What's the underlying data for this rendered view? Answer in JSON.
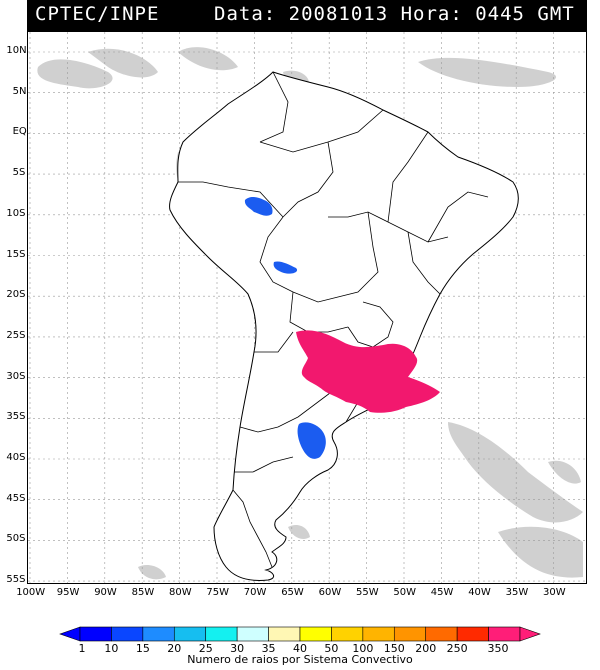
{
  "header": {
    "agency": "CPTEC/INPE",
    "timestamp": "Data: 20081013 Hora: 0445 GMT"
  },
  "map": {
    "lat_labels": [
      "10N",
      "5N",
      "EQ",
      "5S",
      "10S",
      "15S",
      "20S",
      "25S",
      "30S",
      "35S",
      "40S",
      "45S",
      "50S",
      "55S"
    ],
    "lon_labels": [
      "100W",
      "95W",
      "90W",
      "85W",
      "80W",
      "75W",
      "70W",
      "65W",
      "60W",
      "55W",
      "50W",
      "45W",
      "40W",
      "35W",
      "30W"
    ],
    "features": [
      {
        "name": "cluster-peru-brazil",
        "class": "10-15",
        "color": "#1b5cf0"
      },
      {
        "name": "cluster-bolivia",
        "class": "10-15",
        "color": "#1b5cf0"
      },
      {
        "name": "cluster-argentina-south",
        "class": "10-15",
        "color": "#1b5cf0"
      },
      {
        "name": "cluster-uruguay-rs",
        "class": "350",
        "color": "#f2186e"
      }
    ]
  },
  "colorbar": {
    "ticks": [
      "1",
      "10",
      "15",
      "20",
      "25",
      "30",
      "35",
      "40",
      "50",
      "100",
      "150",
      "200",
      "250",
      "350"
    ],
    "colors": [
      "#0000ff",
      "#0a46ff",
      "#1e8cff",
      "#16bef0",
      "#14f0f0",
      "#cfffff",
      "#fff7b4",
      "#ffff00",
      "#ffd200",
      "#ffb400",
      "#ff9400",
      "#ff6a00",
      "#ff2a00",
      "#ff1e78"
    ],
    "caption": "Numero de raios por Sistema Convectivo"
  }
}
